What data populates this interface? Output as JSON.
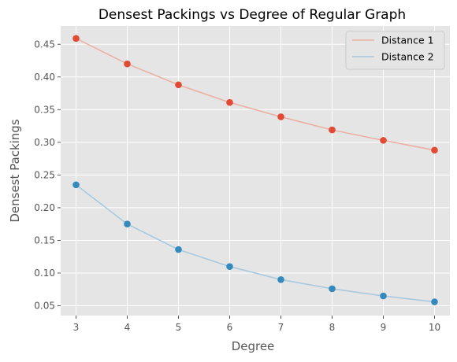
{
  "chart_data": {
    "type": "line",
    "title": "Densest Packings vs Degree of Regular Graph",
    "xlabel": "Degree",
    "ylabel": "Densest Packings",
    "x": [
      3,
      4,
      5,
      6,
      7,
      8,
      9,
      10
    ],
    "xlim": [
      2.7,
      10.3
    ],
    "ylim": [
      0.035,
      0.478
    ],
    "xticks": [
      "3",
      "4",
      "5",
      "6",
      "7",
      "8",
      "9",
      "10"
    ],
    "yticks": [
      "0.05",
      "0.10",
      "0.15",
      "0.20",
      "0.25",
      "0.30",
      "0.35",
      "0.40",
      "0.45"
    ],
    "grid": true,
    "legend_position": "top-right",
    "series": [
      {
        "name": "Distance 1",
        "color": "#E24A33",
        "line_color": "#EBB0A5",
        "values": [
          0.459,
          0.42,
          0.388,
          0.361,
          0.339,
          0.319,
          0.303,
          0.288
        ]
      },
      {
        "name": "Distance 2",
        "color": "#348ABD",
        "line_color": "#A9C9DE",
        "values": [
          0.235,
          0.175,
          0.136,
          0.11,
          0.09,
          0.076,
          0.065,
          0.056
        ]
      }
    ]
  }
}
